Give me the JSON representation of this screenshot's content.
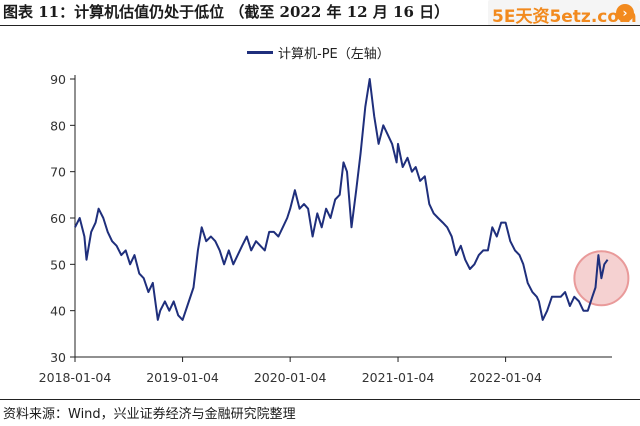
{
  "header": {
    "title": "图表 11：计算机估值仍处于低位 （截至 2022 年 12 月 16 日）",
    "watermark": "5E天资5etz.com"
  },
  "footer": {
    "source": "资料来源：Wind，兴业证券经济与金融研究院整理"
  },
  "colors": {
    "series": "#1f2f7c",
    "highlight": "#e99a9a"
  },
  "chart_data": {
    "type": "line",
    "title": "图表 11：计算机估值仍处于低位 （截至 2022 年 12 月 16 日）",
    "xlabel": "",
    "ylabel": "",
    "ylim": [
      30,
      90
    ],
    "yticks": [
      30,
      40,
      50,
      60,
      70,
      80,
      90
    ],
    "xticks": [
      "2018-01-04",
      "2019-01-04",
      "2020-01-04",
      "2021-01-04",
      "2022-01-04"
    ],
    "legend": {
      "placement": "top-center",
      "entries": [
        "计算机-PE（左轴）"
      ]
    },
    "grid": false,
    "series": [
      {
        "name": "计算机-PE（左轴）",
        "x": [
          "2018-01-04",
          "2018-01-20",
          "2018-02-05",
          "2018-02-12",
          "2018-02-28",
          "2018-03-15",
          "2018-03-25",
          "2018-04-10",
          "2018-04-25",
          "2018-05-10",
          "2018-05-25",
          "2018-06-10",
          "2018-06-25",
          "2018-07-10",
          "2018-07-25",
          "2018-08-10",
          "2018-08-25",
          "2018-09-10",
          "2018-09-25",
          "2018-10-12",
          "2018-10-20",
          "2018-11-05",
          "2018-11-20",
          "2018-12-05",
          "2018-12-20",
          "2019-01-04",
          "2019-01-20",
          "2019-02-10",
          "2019-02-25",
          "2019-03-10",
          "2019-03-25",
          "2019-04-10",
          "2019-04-25",
          "2019-05-10",
          "2019-05-25",
          "2019-06-10",
          "2019-06-25",
          "2019-07-10",
          "2019-07-25",
          "2019-08-10",
          "2019-08-25",
          "2019-09-10",
          "2019-09-25",
          "2019-10-10",
          "2019-10-25",
          "2019-11-10",
          "2019-11-25",
          "2019-12-10",
          "2019-12-25",
          "2020-01-04",
          "2020-01-20",
          "2020-02-05",
          "2020-02-20",
          "2020-03-05",
          "2020-03-20",
          "2020-04-05",
          "2020-04-20",
          "2020-05-05",
          "2020-05-20",
          "2020-06-05",
          "2020-06-20",
          "2020-07-03",
          "2020-07-15",
          "2020-07-30",
          "2020-08-15",
          "2020-08-30",
          "2020-09-15",
          "2020-09-30",
          "2020-10-15",
          "2020-10-30",
          "2020-11-15",
          "2020-11-30",
          "2020-12-15",
          "2020-12-30",
          "2021-01-04",
          "2021-01-20",
          "2021-02-05",
          "2021-02-20",
          "2021-03-05",
          "2021-03-20",
          "2021-04-05",
          "2021-04-20",
          "2021-05-05",
          "2021-05-20",
          "2021-06-05",
          "2021-06-20",
          "2021-07-05",
          "2021-07-20",
          "2021-08-05",
          "2021-08-20",
          "2021-09-05",
          "2021-09-20",
          "2021-10-05",
          "2021-10-20",
          "2021-11-05",
          "2021-11-20",
          "2021-12-05",
          "2021-12-20",
          "2022-01-04",
          "2022-01-20",
          "2022-02-05",
          "2022-02-20",
          "2022-03-05",
          "2022-03-20",
          "2022-04-05",
          "2022-04-20",
          "2022-04-27",
          "2022-05-10",
          "2022-05-25",
          "2022-06-10",
          "2022-06-25",
          "2022-07-10",
          "2022-07-25",
          "2022-08-10",
          "2022-08-25",
          "2022-09-10",
          "2022-09-25",
          "2022-10-10",
          "2022-10-25",
          "2022-11-05",
          "2022-11-15",
          "2022-11-25",
          "2022-12-05",
          "2022-12-16"
        ],
        "values": [
          58,
          60,
          56,
          51,
          57,
          59,
          62,
          60,
          57,
          55,
          54,
          52,
          53,
          50,
          52,
          48,
          47,
          44,
          46,
          38,
          40,
          42,
          40,
          42,
          39,
          38,
          41,
          45,
          53,
          58,
          55,
          56,
          55,
          53,
          50,
          53,
          50,
          52,
          54,
          56,
          53,
          55,
          54,
          53,
          57,
          57,
          56,
          58,
          60,
          62,
          66,
          62,
          63,
          62,
          56,
          61,
          58,
          62,
          60,
          64,
          65,
          72,
          70,
          58,
          66,
          74,
          84,
          90,
          82,
          76,
          80,
          78,
          76,
          72,
          76,
          71,
          73,
          70,
          71,
          68,
          69,
          63,
          61,
          60,
          59,
          58,
          56,
          52,
          54,
          51,
          49,
          50,
          52,
          53,
          53,
          58,
          56,
          59,
          59,
          55,
          53,
          52,
          50,
          46,
          44,
          43,
          42,
          38,
          40,
          43,
          43,
          43,
          44,
          41,
          43,
          42,
          40,
          40,
          43,
          45,
          52,
          47,
          50,
          51
        ]
      }
    ],
    "annotations": [
      "highlight circle around the latest values (end of 2022)"
    ]
  }
}
